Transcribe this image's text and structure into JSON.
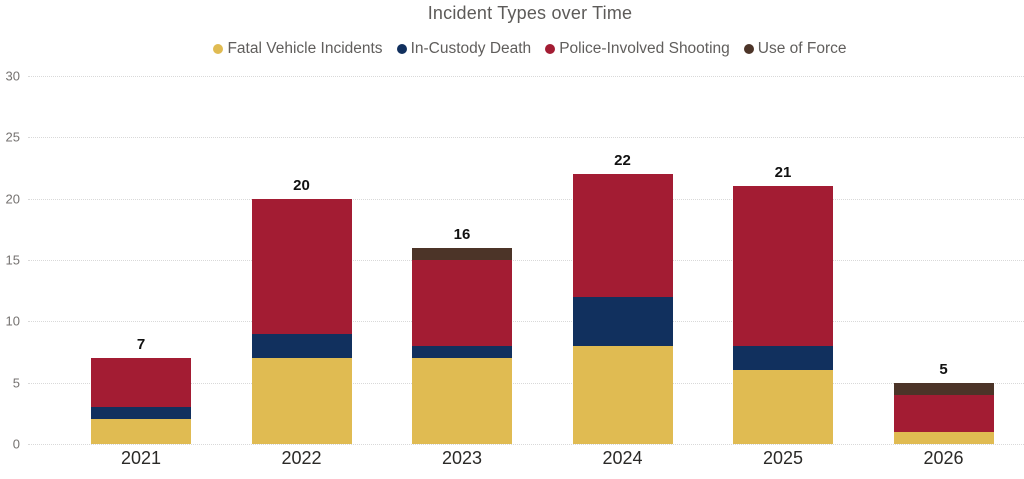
{
  "chart_data": {
    "type": "bar",
    "stacked": true,
    "title": "Incident Types over Time",
    "categories": [
      "2021",
      "2022",
      "2023",
      "2024",
      "2025",
      "2026"
    ],
    "series": [
      {
        "name": "Fatal Vehicle Incidents",
        "color": "#e0bb52",
        "values": [
          2,
          7,
          7,
          8,
          6,
          1
        ]
      },
      {
        "name": "In-Custody Death",
        "color": "#11305e",
        "values": [
          1,
          2,
          1,
          4,
          2,
          0
        ]
      },
      {
        "name": "Police-Involved Shooting",
        "color": "#a31c33",
        "values": [
          4,
          11,
          7,
          10,
          13,
          3
        ]
      },
      {
        "name": "Use of Force",
        "color": "#4c3428",
        "values": [
          0,
          0,
          1,
          0,
          0,
          1
        ]
      }
    ],
    "totals": [
      7,
      20,
      16,
      22,
      21,
      5
    ],
    "xlabel": "",
    "ylabel": "",
    "yticks": [
      0,
      5,
      10,
      15,
      20,
      25,
      30
    ],
    "ylim": [
      0,
      30
    ],
    "legend_position": "top",
    "grid": "horizontal-dotted",
    "colors": {
      "title_text": "#5d5b59",
      "legend_text": "#605e5c",
      "y_tick_text": "#757270",
      "x_tick_text": "#2a2927",
      "data_label_text": "#111111",
      "gridline": "#d9d9d9",
      "background": "#ffffff"
    }
  }
}
